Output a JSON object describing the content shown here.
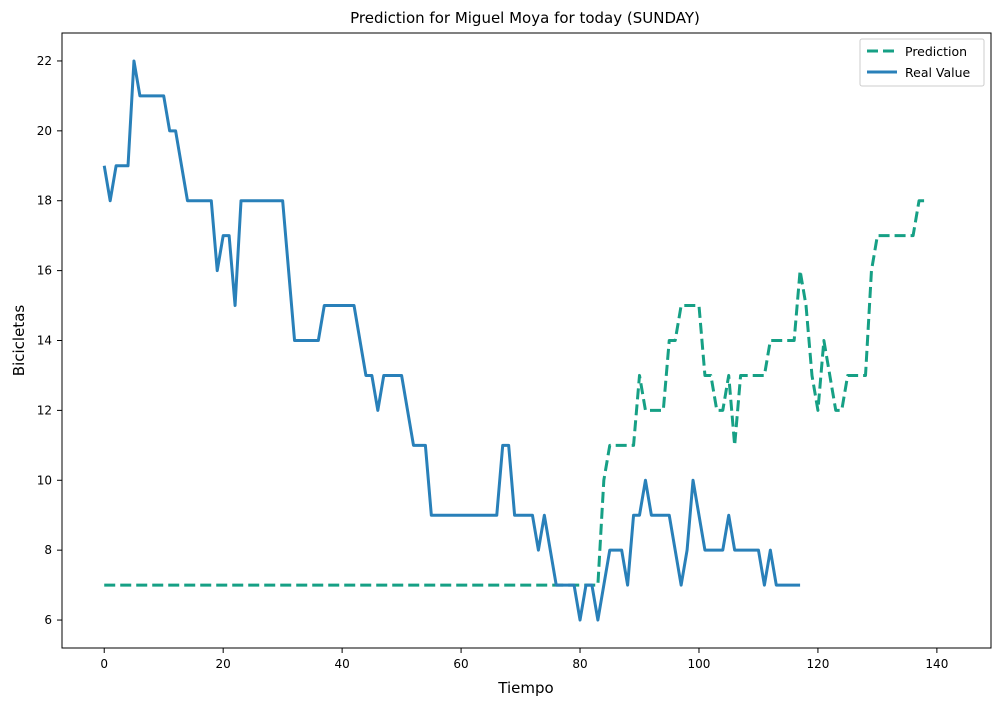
{
  "chart_data": {
    "type": "line",
    "title": "Prediction for Miguel Moya for today (SUNDAY)",
    "xlabel": "Tiempo",
    "ylabel": "Bicicletas",
    "xlim": [
      -7.1,
      149.1
    ],
    "ylim": [
      5.2,
      22.8
    ],
    "xticks": [
      0,
      20,
      40,
      60,
      80,
      100,
      120,
      140
    ],
    "yticks": [
      6,
      8,
      10,
      12,
      14,
      16,
      18,
      20,
      22
    ],
    "grid": false,
    "legend_position": "top-right",
    "series": [
      {
        "name": "Prediction",
        "color": "#16a085",
        "style": "dashed",
        "points": [
          [
            0,
            7
          ],
          [
            83,
            7
          ],
          [
            84,
            10
          ],
          [
            85,
            11
          ],
          [
            89,
            11
          ],
          [
            90,
            13
          ],
          [
            91,
            12
          ],
          [
            94,
            12
          ],
          [
            95,
            14
          ],
          [
            96,
            14
          ],
          [
            97,
            15
          ],
          [
            100,
            15
          ],
          [
            101,
            13
          ],
          [
            102,
            13
          ],
          [
            103,
            12
          ],
          [
            104,
            12
          ],
          [
            105,
            13
          ],
          [
            106,
            11
          ],
          [
            107,
            13
          ],
          [
            111,
            13
          ],
          [
            112,
            14
          ],
          [
            116,
            14
          ],
          [
            117,
            16
          ],
          [
            118,
            15
          ],
          [
            119,
            13
          ],
          [
            120,
            12
          ],
          [
            121,
            14
          ],
          [
            122,
            13
          ],
          [
            123,
            12
          ],
          [
            124,
            12
          ],
          [
            125,
            13
          ],
          [
            128,
            13
          ],
          [
            129,
            16
          ],
          [
            130,
            17
          ],
          [
            136,
            17
          ],
          [
            137,
            18
          ],
          [
            138,
            18
          ]
        ]
      },
      {
        "name": "Real Value",
        "color": "#2980b9",
        "style": "solid",
        "points": [
          [
            0,
            19
          ],
          [
            1,
            18
          ],
          [
            2,
            19
          ],
          [
            4,
            19
          ],
          [
            5,
            22
          ],
          [
            6,
            21
          ],
          [
            10,
            21
          ],
          [
            11,
            20
          ],
          [
            12,
            20
          ],
          [
            14,
            18
          ],
          [
            18,
            18
          ],
          [
            19,
            16
          ],
          [
            20,
            17
          ],
          [
            21,
            17
          ],
          [
            22,
            15
          ],
          [
            23,
            18
          ],
          [
            30,
            18
          ],
          [
            32,
            14
          ],
          [
            36,
            14
          ],
          [
            37,
            15
          ],
          [
            42,
            15
          ],
          [
            44,
            13
          ],
          [
            45,
            13
          ],
          [
            46,
            12
          ],
          [
            47,
            13
          ],
          [
            50,
            13
          ],
          [
            52,
            11
          ],
          [
            54,
            11
          ],
          [
            55,
            9
          ],
          [
            66,
            9
          ],
          [
            67,
            11
          ],
          [
            68,
            11
          ],
          [
            69,
            9
          ],
          [
            72,
            9
          ],
          [
            73,
            8
          ],
          [
            74,
            9
          ],
          [
            76,
            7
          ],
          [
            79,
            7
          ],
          [
            80,
            6
          ],
          [
            81,
            7
          ],
          [
            82,
            7
          ],
          [
            83,
            6
          ],
          [
            85,
            8
          ],
          [
            87,
            8
          ],
          [
            88,
            7
          ],
          [
            89,
            9
          ],
          [
            90,
            9
          ],
          [
            91,
            10
          ],
          [
            92,
            9
          ],
          [
            95,
            9
          ],
          [
            97,
            7
          ],
          [
            98,
            8
          ],
          [
            99,
            10
          ],
          [
            101,
            8
          ],
          [
            104,
            8
          ],
          [
            105,
            9
          ],
          [
            106,
            8
          ],
          [
            110,
            8
          ],
          [
            111,
            7
          ],
          [
            112,
            8
          ],
          [
            113,
            7
          ],
          [
            117,
            7
          ]
        ]
      }
    ]
  }
}
